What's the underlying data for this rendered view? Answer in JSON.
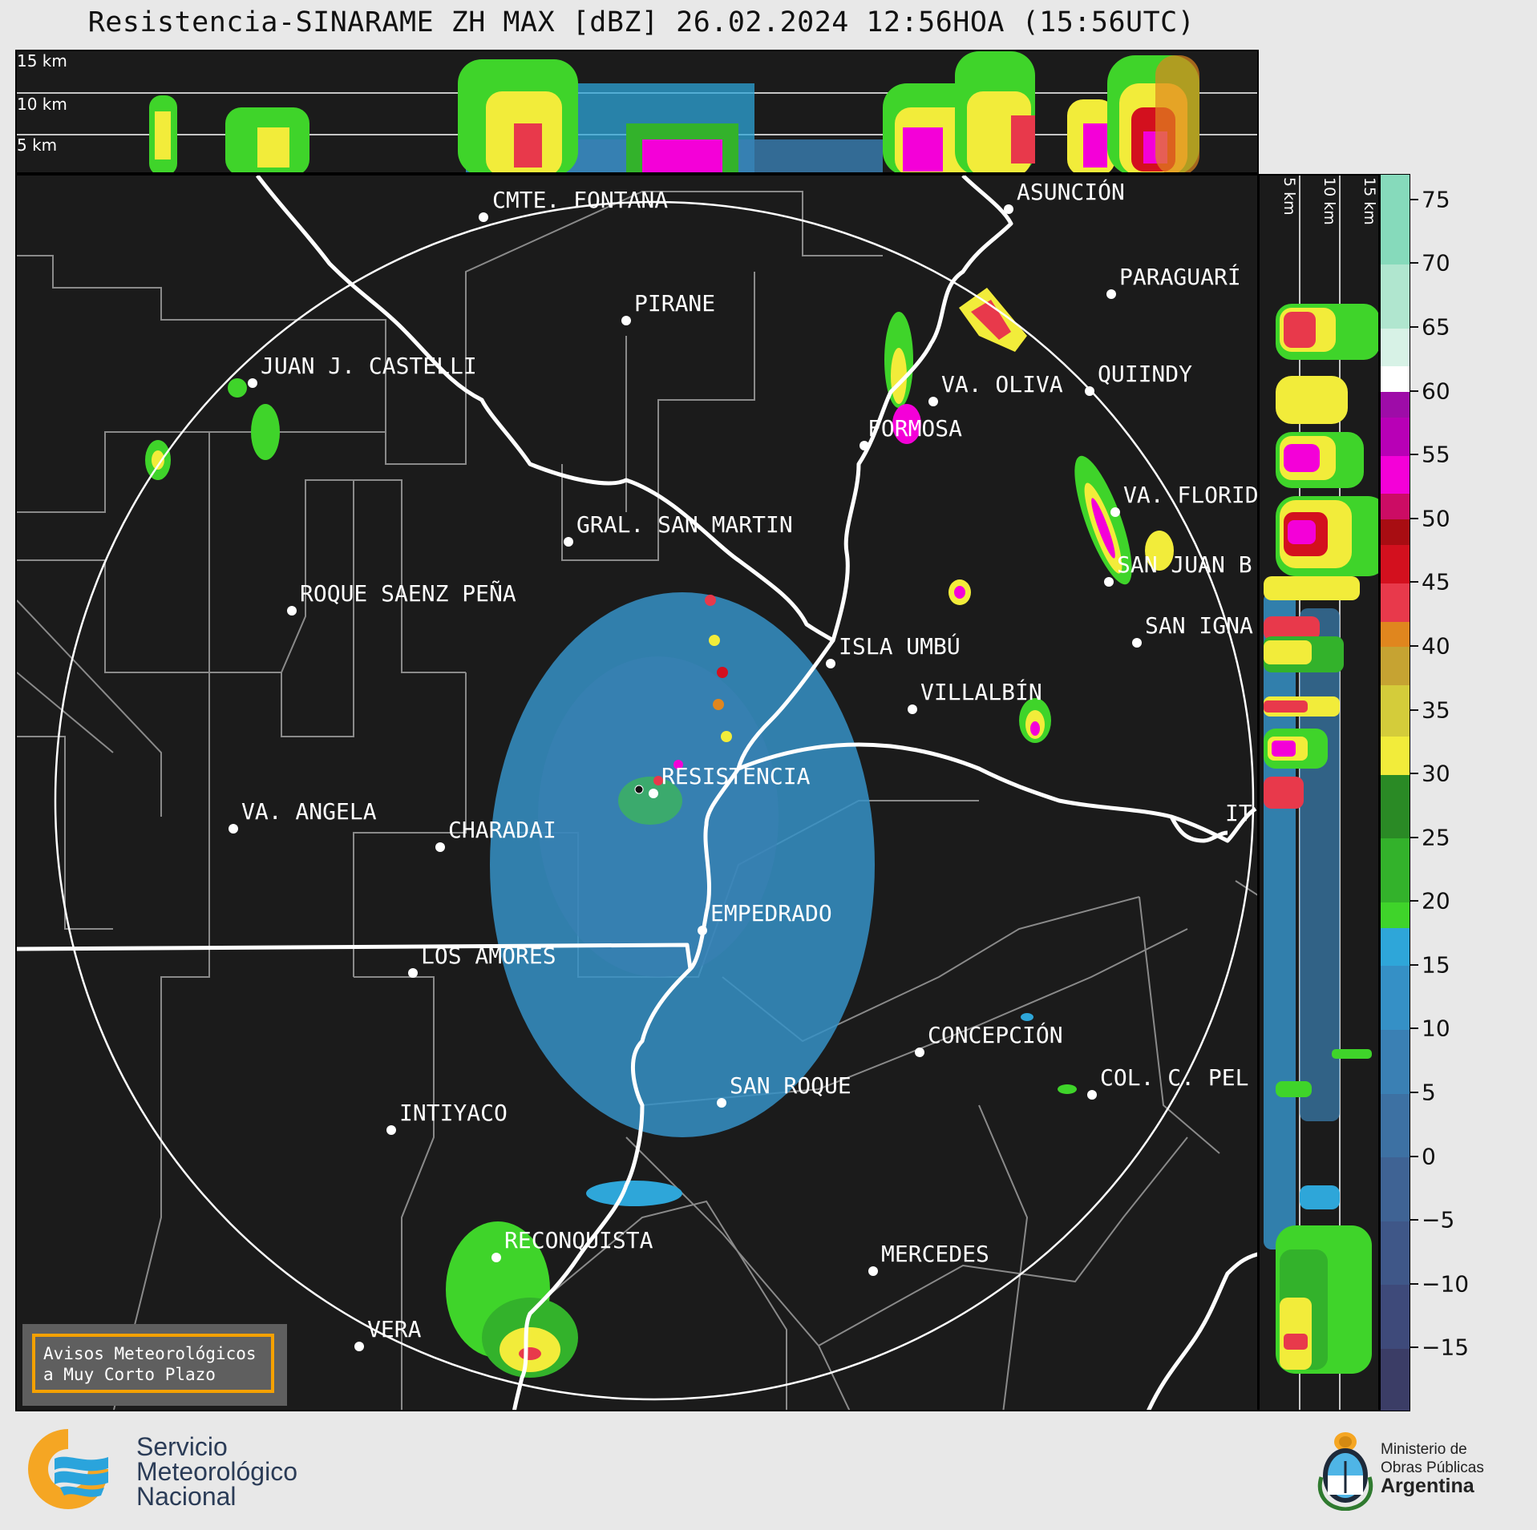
{
  "header": {
    "title": "Resistencia-SINARAME ZH MAX [dBZ] 26.02.2024 12:56HOA (15:56UTC)"
  },
  "top_panel": {
    "altitude_labels": [
      "15 km",
      "10 km",
      "5 km"
    ]
  },
  "side_panel": {
    "altitude_labels": [
      "5 km",
      "10 km",
      "15 km"
    ]
  },
  "map": {
    "cities": [
      {
        "name": "CMTE. FONTANA",
        "type": "city"
      },
      {
        "name": "ASUNCIÓN",
        "type": "city"
      },
      {
        "name": "PIRANE",
        "type": "city"
      },
      {
        "name": "PARAGUARÍ",
        "type": "city"
      },
      {
        "name": "JUAN J. CASTELLI",
        "type": "city"
      },
      {
        "name": "VA. OLIVA",
        "type": "city"
      },
      {
        "name": "QUIINDY",
        "type": "city"
      },
      {
        "name": "FORMOSA",
        "type": "city"
      },
      {
        "name": "VA. FLORID",
        "type": "city"
      },
      {
        "name": "GRAL. SAN MARTIN",
        "type": "city"
      },
      {
        "name": "SAN JUAN B",
        "type": "city"
      },
      {
        "name": "ROQUE SAENZ PEÑA",
        "type": "city"
      },
      {
        "name": "SAN IGNA",
        "type": "city"
      },
      {
        "name": "ISLA UMBÚ",
        "type": "city"
      },
      {
        "name": "VILLALBÍN",
        "type": "city"
      },
      {
        "name": "RESISTENCIA",
        "type": "radar"
      },
      {
        "name": "VA. ANGELA",
        "type": "city"
      },
      {
        "name": "CHARADAI",
        "type": "city"
      },
      {
        "name": "IT",
        "type": "city"
      },
      {
        "name": "EMPEDRADO",
        "type": "city"
      },
      {
        "name": "LOS AMORES",
        "type": "city"
      },
      {
        "name": "CONCEPCIÓN",
        "type": "city"
      },
      {
        "name": "SAN ROQUE",
        "type": "city"
      },
      {
        "name": "COL. C. PEL",
        "type": "city"
      },
      {
        "name": "INTIYACO",
        "type": "city"
      },
      {
        "name": "RECONQUISTA",
        "type": "city"
      },
      {
        "name": "MERCEDES",
        "type": "city"
      },
      {
        "name": "VERA",
        "type": "city"
      }
    ],
    "colors": {
      "background": "#1b1b1b",
      "borders": "#ffffff",
      "departments": "#8a8a8a",
      "range_ring": "#ffffff"
    }
  },
  "colorbar": {
    "unit": "dBZ",
    "tick_labels": [
      "75",
      "70",
      "65",
      "60",
      "55",
      "50",
      "45",
      "40",
      "35",
      "30",
      "25",
      "20",
      "15",
      "10",
      "5",
      "0",
      "−5",
      "−10",
      "−15"
    ],
    "tick_values": [
      75,
      70,
      65,
      60,
      55,
      50,
      45,
      40,
      35,
      30,
      25,
      20,
      15,
      10,
      5,
      0,
      -5,
      -10,
      -15
    ],
    "range": [
      -20,
      77
    ],
    "stops": [
      {
        "from": -20,
        "to": -15,
        "color": "#3b3d66"
      },
      {
        "from": -15,
        "to": -10,
        "color": "#3e4a7a"
      },
      {
        "from": -10,
        "to": -5,
        "color": "#3f5788"
      },
      {
        "from": -5,
        "to": 0,
        "color": "#3f6394"
      },
      {
        "from": 0,
        "to": 5,
        "color": "#3d71a3"
      },
      {
        "from": 5,
        "to": 10,
        "color": "#3a80b4"
      },
      {
        "from": 10,
        "to": 15,
        "color": "#3590c6"
      },
      {
        "from": 15,
        "to": 18,
        "color": "#2ea6d9"
      },
      {
        "from": 18,
        "to": 20,
        "color": "#3fd42a"
      },
      {
        "from": 20,
        "to": 25,
        "color": "#33b22b"
      },
      {
        "from": 25,
        "to": 30,
        "color": "#2a8a25"
      },
      {
        "from": 30,
        "to": 33,
        "color": "#f2ec3a"
      },
      {
        "from": 33,
        "to": 37,
        "color": "#d4cc3a"
      },
      {
        "from": 37,
        "to": 40,
        "color": "#c6a332"
      },
      {
        "from": 40,
        "to": 42,
        "color": "#e0861e"
      },
      {
        "from": 42,
        "to": 45,
        "color": "#e8394b"
      },
      {
        "from": 45,
        "to": 48,
        "color": "#d3101e"
      },
      {
        "from": 48,
        "to": 50,
        "color": "#a80d12"
      },
      {
        "from": 50,
        "to": 52,
        "color": "#cc0c64"
      },
      {
        "from": 52,
        "to": 55,
        "color": "#f400d8"
      },
      {
        "from": 55,
        "to": 58,
        "color": "#b800b6"
      },
      {
        "from": 58,
        "to": 60,
        "color": "#9e0ca8"
      },
      {
        "from": 60,
        "to": 62,
        "color": "#ffffff"
      },
      {
        "from": 62,
        "to": 65,
        "color": "#d7f2e6"
      },
      {
        "from": 65,
        "to": 70,
        "color": "#b0e6cf"
      },
      {
        "from": 70,
        "to": 77,
        "color": "#86dabb"
      }
    ]
  },
  "notice": {
    "line1": "Avisos Meteorológicos",
    "line2": "a Muy Corto Plazo"
  },
  "footer": {
    "smn": {
      "line1": "Servicio",
      "line2": "Meteorológico",
      "line3": "Nacional",
      "colors": {
        "sun": "#f5a623",
        "waves": "#2aa4dc"
      }
    },
    "ministerio": {
      "line1": "Ministerio de",
      "line2": "Obras Públicas",
      "country": "Argentina"
    }
  }
}
